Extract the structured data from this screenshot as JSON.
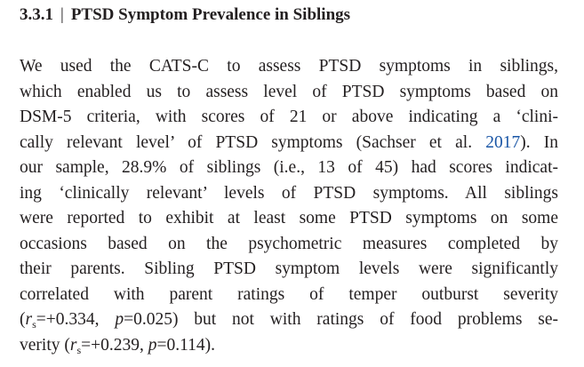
{
  "heading": {
    "number": "3.3.1",
    "separator": "|",
    "title": "PTSD Symptom Prevalence in Siblings"
  },
  "paragraph": {
    "lines": [
      [
        "We used the CATS-C to assess PTSD symptoms in siblings,"
      ],
      [
        "which enabled us to assess level of PTSD symptoms based on"
      ],
      [
        "DSM-5 criteria, with scores of 21 or above indicating a ‘clini-"
      ],
      [
        "cally relevant level’ of PTSD symptoms (Sachser et al. ",
        "2017",
        "). In"
      ],
      [
        "our sample, 28.9% of siblings (i.e., 13 of 45) had scores indicat-"
      ],
      [
        "ing ‘clinically relevant’ levels of PTSD symptoms. All siblings"
      ],
      [
        "were reported to exhibit at least some PTSD symptoms on some"
      ],
      [
        "occasions based on the psychometric measures completed by"
      ],
      [
        "their parents. Sibling PTSD symptom levels were significantly"
      ],
      [
        "correlated with parent ratings of temper outburst severity"
      ],
      [
        "(",
        "r",
        "s",
        "=+0.334, ",
        "p",
        "=0.025) but not with ratings of food problems se-"
      ],
      [
        "verity (",
        "r",
        "s",
        "=+0.239, ",
        "p",
        "=0.114)."
      ]
    ]
  }
}
